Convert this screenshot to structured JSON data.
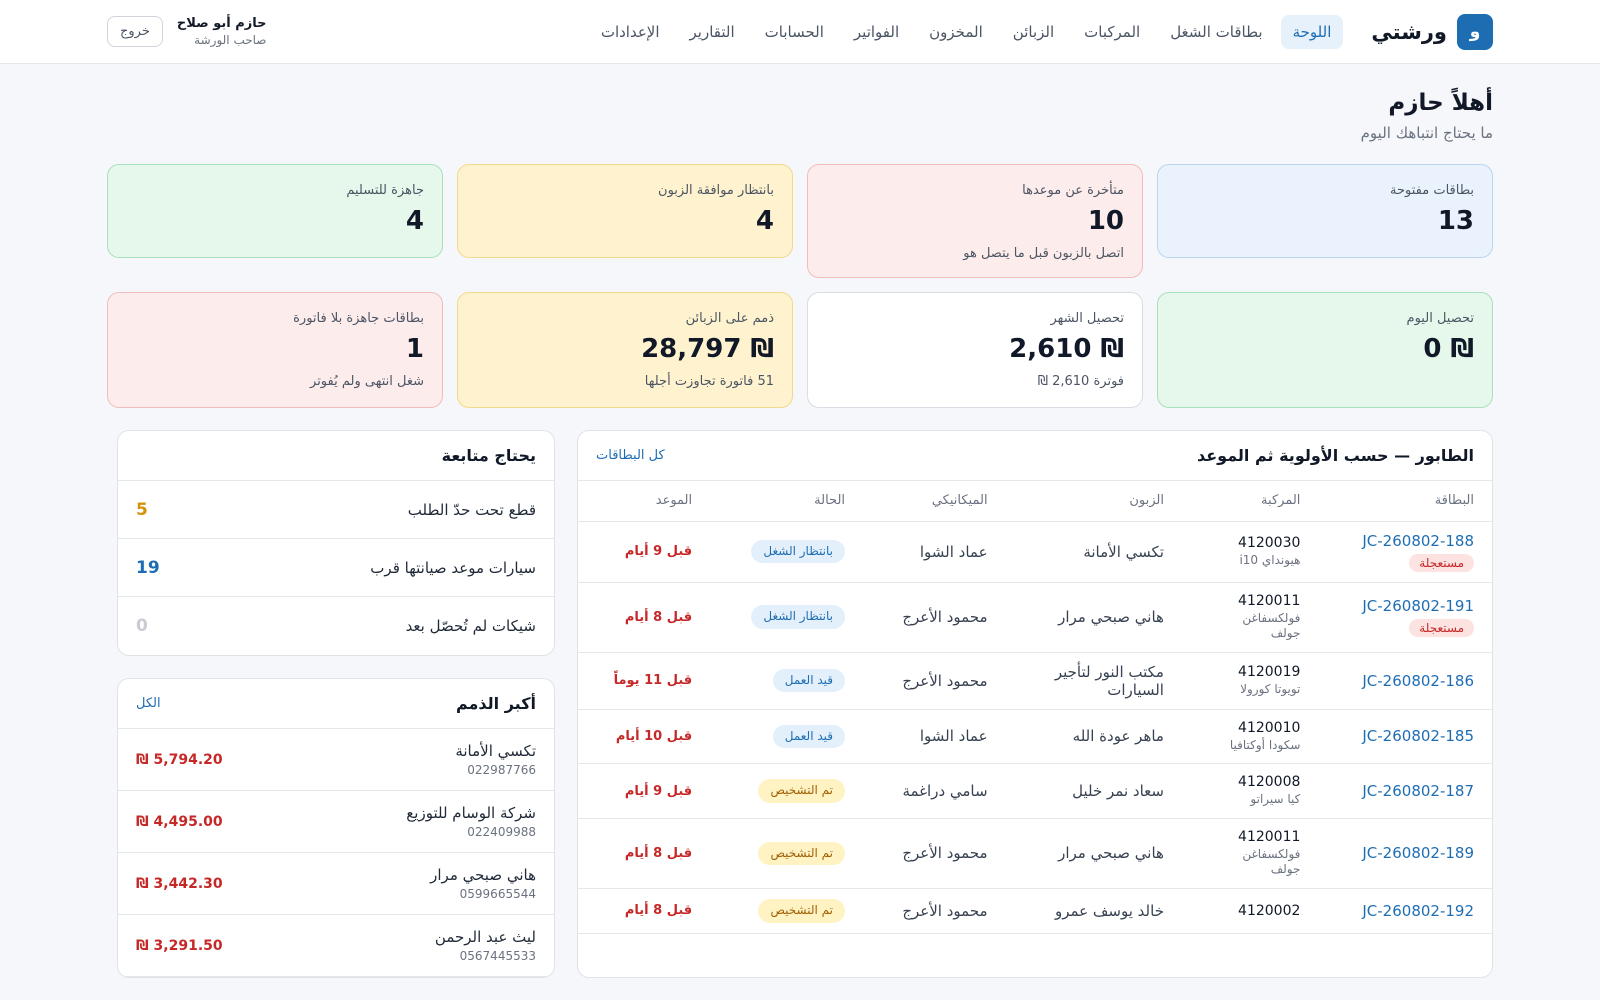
{
  "header": {
    "brand_letter": "و",
    "brand_name": "ورشتي",
    "nav": [
      "اللوحة",
      "بطاقات الشغل",
      "المركبات",
      "الزبائن",
      "المخزون",
      "الفواتير",
      "الحسابات",
      "التقارير",
      "الإعدادات"
    ],
    "active_nav": "اللوحة",
    "user_name": "حازم أبو صلاح",
    "user_role": "صاحب الورشة",
    "logout": "خروج"
  },
  "greeting": {
    "title": "أهلاً حازم",
    "subtitle": "ما يحتاج انتباهك اليوم"
  },
  "stats_top": [
    {
      "label": "بطاقات مفتوحة",
      "value": "13",
      "note": "",
      "color": "blue"
    },
    {
      "label": "متأخرة عن موعدها",
      "value": "10",
      "note": "اتصل بالزبون قبل ما يتصل هو",
      "color": "red"
    },
    {
      "label": "بانتظار موافقة الزبون",
      "value": "4",
      "note": "",
      "color": "yellow"
    },
    {
      "label": "جاهزة للتسليم",
      "value": "4",
      "note": "",
      "color": "green"
    }
  ],
  "stats_bottom": [
    {
      "label": "تحصيل اليوم",
      "value": "₪ 0",
      "note": "",
      "color": "green"
    },
    {
      "label": "تحصيل الشهر",
      "value": "₪ 2,610",
      "note": "فوترة 2,610 ₪",
      "color": "white"
    },
    {
      "label": "ذمم على الزبائن",
      "value": "₪ 28,797",
      "note": "51 فاتورة تجاوزت أجلها",
      "color": "yellow"
    },
    {
      "label": "بطاقات جاهزة بلا فاتورة",
      "value": "1",
      "note": "شغل انتهى ولم يُفوتر",
      "color": "red"
    }
  ],
  "queue": {
    "title": "الطابور — حسب الأولوية ثم الموعد",
    "all_link": "كل البطاقات",
    "columns": [
      "البطاقة",
      "المركبة",
      "الزبون",
      "الميكانيكي",
      "الحالة",
      "الموعد"
    ],
    "rows": [
      {
        "id": "JC-260802-188",
        "urgent": "مستعجلة",
        "plate": "4120030",
        "model": "هيونداي i10",
        "customer": "تكسي الأمانة",
        "mechanic": "عماد الشوا",
        "status": "بانتظار الشغل",
        "status_type": "waiting",
        "due": "قبل 9 أيام"
      },
      {
        "id": "JC-260802-191",
        "urgent": "مستعجلة",
        "plate": "4120011",
        "model": "فولكسفاغن جولف",
        "customer": "هاني صبحي مرار",
        "mechanic": "محمود الأعرج",
        "status": "بانتظار الشغل",
        "status_type": "waiting",
        "due": "قبل 8 أيام"
      },
      {
        "id": "JC-260802-186",
        "urgent": "",
        "plate": "4120019",
        "model": "تويوتا كورولا",
        "customer": "مكتب النور لتأجير السيارات",
        "mechanic": "محمود الأعرج",
        "status": "قيد العمل",
        "status_type": "working",
        "due": "قبل 11 يوماً"
      },
      {
        "id": "JC-260802-185",
        "urgent": "",
        "plate": "4120010",
        "model": "سكودا أوكتافيا",
        "customer": "ماهر عودة الله",
        "mechanic": "عماد الشوا",
        "status": "قيد العمل",
        "status_type": "working",
        "due": "قبل 10 أيام"
      },
      {
        "id": "JC-260802-187",
        "urgent": "",
        "plate": "4120008",
        "model": "كيا سيراتو",
        "customer": "سعاد نمر خليل",
        "mechanic": "سامي دراغمة",
        "status": "تم التشخيص",
        "status_type": "diagnosed",
        "due": "قبل 9 أيام"
      },
      {
        "id": "JC-260802-189",
        "urgent": "",
        "plate": "4120011",
        "model": "فولكسفاغن جولف",
        "customer": "هاني صبحي مرار",
        "mechanic": "محمود الأعرج",
        "status": "تم التشخيص",
        "status_type": "diagnosed",
        "due": "قبل 8 أيام"
      },
      {
        "id": "JC-260802-192",
        "urgent": "",
        "plate": "4120002",
        "model": "",
        "customer": "خالد يوسف عمرو",
        "mechanic": "محمود الأعرج",
        "status": "تم التشخيص",
        "status_type": "diagnosed",
        "due": "قبل 8 أيام"
      }
    ]
  },
  "follow": {
    "title": "يحتاج متابعة",
    "items": [
      {
        "label": "قطع تحت حدّ الطلب",
        "count": "5",
        "color": "#d4920b"
      },
      {
        "label": "سيارات موعد صيانتها قرب",
        "count": "19",
        "color": "#1e6db3"
      },
      {
        "label": "شيكات لم تُحصّل بعد",
        "count": "0",
        "color": "#c9cdd3"
      }
    ]
  },
  "debts": {
    "title": "أكبر الذمم",
    "all_link": "الكل",
    "items": [
      {
        "name": "تكسي الأمانة",
        "phone": "022987766",
        "amount": "₪ 5,794.20"
      },
      {
        "name": "شركة الوسام للتوزيع",
        "phone": "022409988",
        "amount": "₪ 4,495.00"
      },
      {
        "name": "هاني صبحي مرار",
        "phone": "0599665544",
        "amount": "₪ 3,442.30"
      },
      {
        "name": "ليث عبد الرحمن",
        "phone": "0567445533",
        "amount": "₪ 3,291.50"
      }
    ]
  }
}
